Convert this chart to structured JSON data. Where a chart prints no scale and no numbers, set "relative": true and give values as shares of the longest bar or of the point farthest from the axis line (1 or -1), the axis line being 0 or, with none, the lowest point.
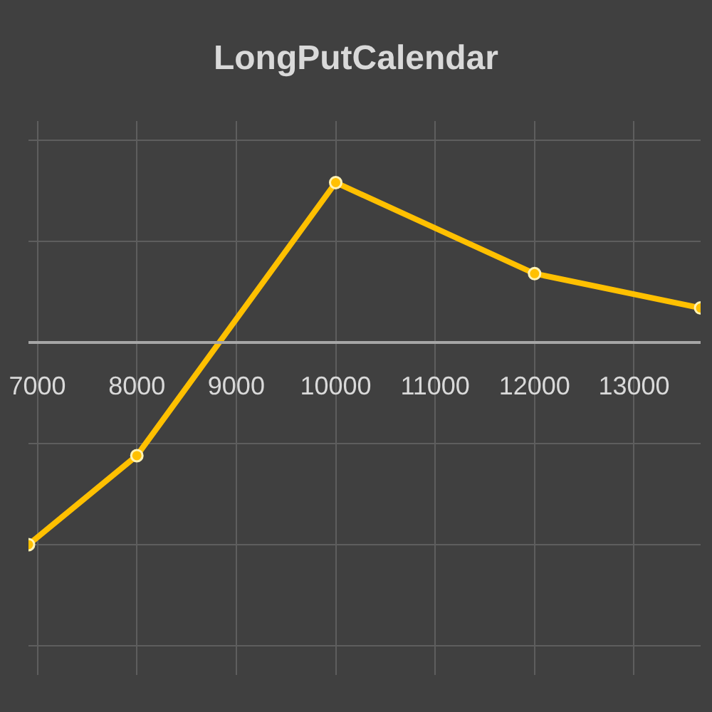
{
  "chart_data": {
    "type": "line",
    "title": "LongPutCalendar",
    "x": [
      6910,
      8000,
      10000,
      12000,
      13670
    ],
    "values": [
      -1,
      -0.56,
      0.79,
      0.34,
      0.17
    ],
    "color": "#ffc000",
    "relative": true,
    "xlim": [
      6910,
      13670
    ],
    "xticks": [
      7000,
      8000,
      9000,
      10000,
      11000,
      12000,
      13000
    ],
    "grid": true,
    "marker": "circle",
    "line_style": "solid"
  }
}
